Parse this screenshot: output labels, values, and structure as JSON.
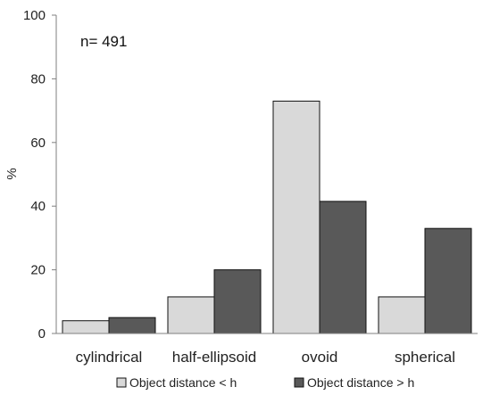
{
  "chart_data": {
    "type": "bar",
    "title": "",
    "xlabel": "",
    "ylabel": "%",
    "ylim": [
      0,
      100
    ],
    "yticks": [
      0,
      20,
      40,
      60,
      80,
      100
    ],
    "grid": false,
    "legend_position": "bottom",
    "annotation": "n= 491",
    "categories": [
      "cylindrical",
      "half-ellipsoid",
      "ovoid",
      "spherical"
    ],
    "series": [
      {
        "name": "Object distance < h",
        "color": "#d9d9d9",
        "values": [
          4,
          11.5,
          73,
          11.5
        ]
      },
      {
        "name": "Object distance > h",
        "color": "#595959",
        "values": [
          5,
          20,
          41.5,
          33
        ]
      }
    ]
  }
}
